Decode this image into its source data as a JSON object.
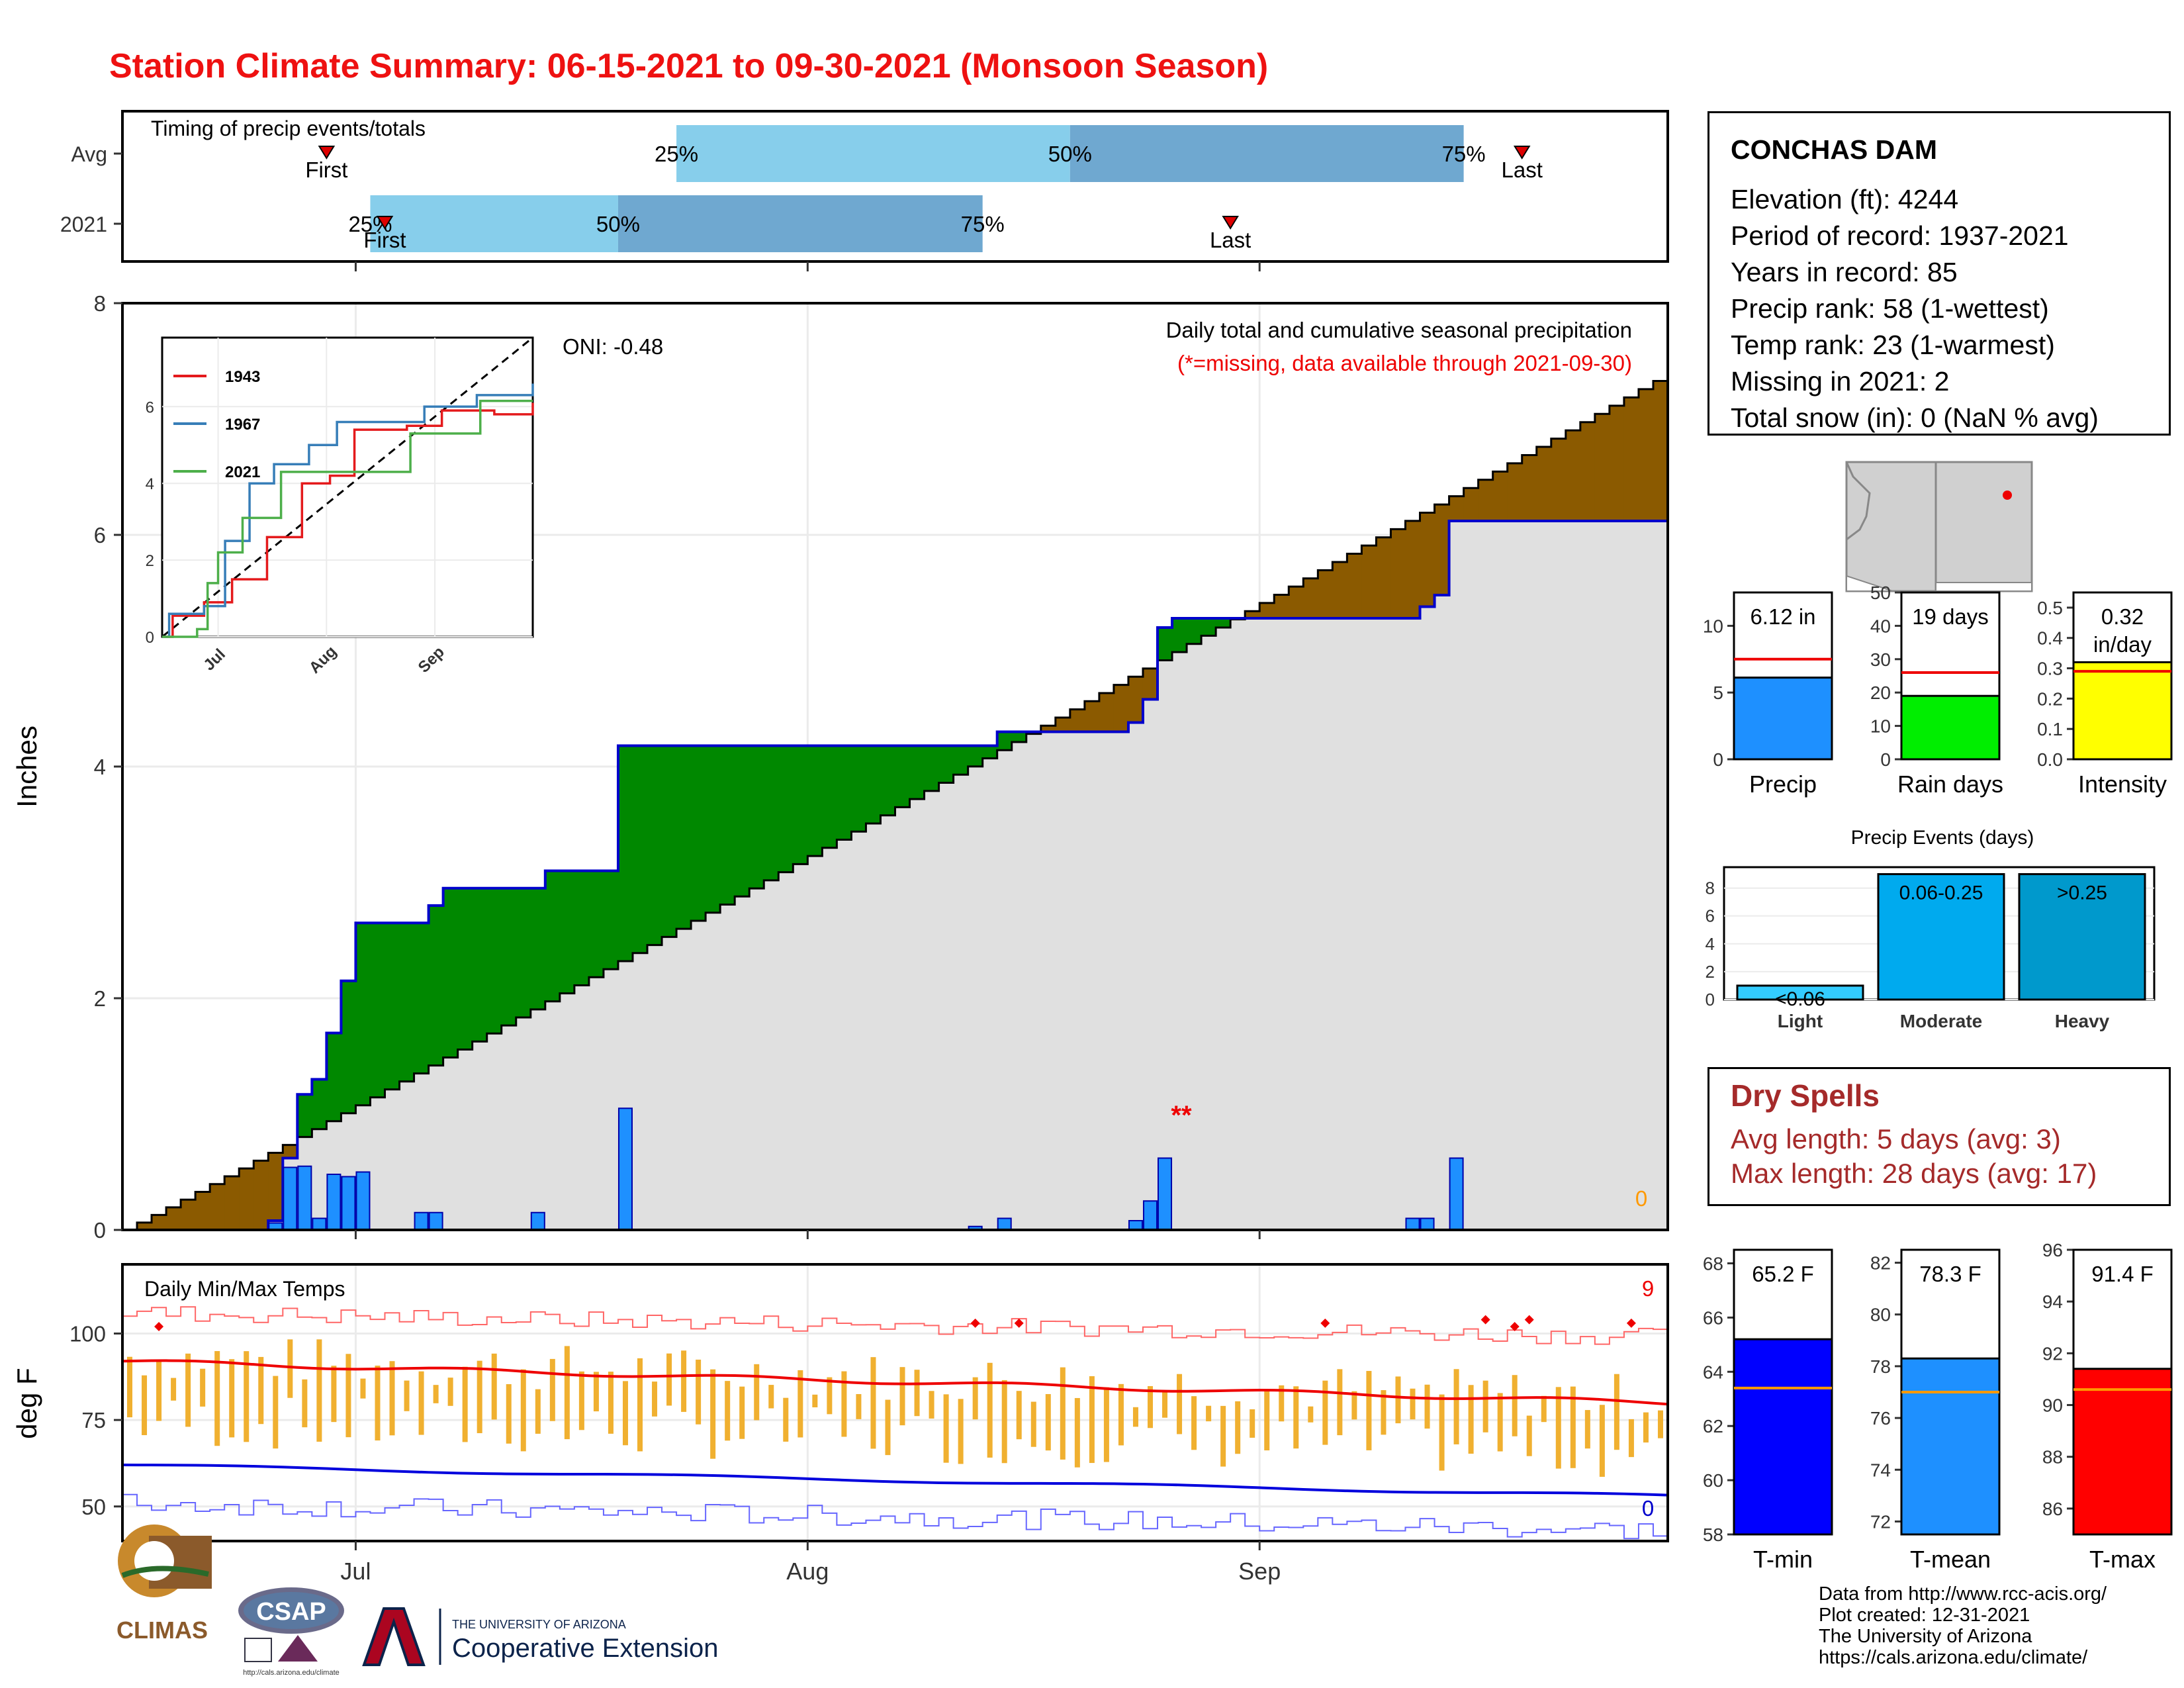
{
  "title": "Station Climate Summary: 06-15-2021 to 09-30-2021 (Monsoon Season)",
  "timing_panel": {
    "label": "Timing of precip events/totals",
    "rows": [
      {
        "name": "Avg",
        "first_doy": 14,
        "last_doy": 96,
        "q25_doy": 38,
        "q50_doy": 65,
        "q75_doy": 92,
        "first_label": "First",
        "last_label": "Last",
        "q25_label": "25%",
        "q50_label": "50%",
        "q75_label": "75%"
      },
      {
        "name": "2021",
        "first_doy": 18,
        "last_doy": 76,
        "q25_doy": 17,
        "q50_doy": 34,
        "q75_doy": 59,
        "first_label": "First",
        "last_label": "Last",
        "q25_label": "25%",
        "q50_label": "50%",
        "q75_label": "75%"
      }
    ],
    "colors": {
      "q1": "#87ceeb",
      "q2": "#6fa8d0",
      "marker": "#dd0000"
    }
  },
  "precip_panel": {
    "ylabel": "Inches",
    "yticks": [
      "0",
      "2",
      "4",
      "6",
      "8"
    ],
    "caption": "Daily total and cumulative seasonal precipitation",
    "caption_note": "(*=missing, data available through 2021-09-30)",
    "oni_label": "ONI: -0.48",
    "missing_marker": "**",
    "zero_note": "0",
    "colors": {
      "normal": "#e0e0e0",
      "surplus": "#008800",
      "deficit": "#8b5a00",
      "daily_bar": "#1e90ff",
      "cum_line": "#0000cc"
    }
  },
  "inset": {
    "series": [
      {
        "name": "1943",
        "color": "#e41a1c"
      },
      {
        "name": "1967",
        "color": "#377eb8"
      },
      {
        "name": "2021",
        "color": "#4daf4a"
      }
    ],
    "yticks": [
      "0",
      "2",
      "4",
      "6"
    ],
    "xticks": [
      "Jul",
      "Aug",
      "Sep"
    ]
  },
  "temp_panel": {
    "title": "Daily Min/Max Temps",
    "ylabel": "deg F",
    "yticks": [
      "50",
      "75",
      "100"
    ],
    "xticks": [
      "Jul",
      "Aug",
      "Sep"
    ],
    "record_high_count": "9",
    "record_low_count": "0",
    "colors": {
      "bar": "#f0b030",
      "avg_max": "#ee0000",
      "avg_min": "#0000dd",
      "record_max": "#ff6666",
      "record_min": "#6666ff"
    }
  },
  "station": {
    "name": "CONCHAS DAM",
    "lines": [
      "Elevation (ft): 4244",
      "Period of record: 1937-2021",
      "Years in record: 85",
      "Precip rank: 58 (1-wettest)",
      "Temp rank: 23 (1-warmest)",
      "Missing in 2021: 2",
      "Total snow (in): 0 (NaN % avg)"
    ]
  },
  "season_bars": [
    {
      "label": "Precip",
      "value_label": "6.12 in",
      "value": 6.12,
      "avg": 7.5,
      "ylim": [
        0,
        12.5
      ],
      "yticks": [
        "0",
        "5",
        "10"
      ],
      "color": "#1e90ff"
    },
    {
      "label": "Rain days",
      "value_label": "19 days",
      "value": 19,
      "avg": 26,
      "ylim": [
        0,
        50
      ],
      "yticks": [
        "0",
        "10",
        "20",
        "30",
        "40",
        "50"
      ],
      "color": "#00ee00"
    },
    {
      "label": "Intensity",
      "value_label": "0.32 in/day",
      "value_label_1": "0.32",
      "value_label_2": "in/day",
      "value": 0.32,
      "avg": 0.29,
      "ylim": [
        0,
        0.55
      ],
      "yticks": [
        "0.0",
        "0.1",
        "0.2",
        "0.3",
        "0.4",
        "0.5"
      ],
      "color": "#ffff00"
    }
  ],
  "precip_events": {
    "title": "Precip Events (days)",
    "yticks": [
      "0",
      "2",
      "4",
      "6",
      "8"
    ],
    "bars": [
      {
        "label": "Light",
        "inner": "<0.06",
        "value": 1,
        "color": "#33ccff"
      },
      {
        "label": "Moderate",
        "inner": "0.06-0.25",
        "value": 9,
        "color": "#00aaee"
      },
      {
        "label": "Heavy",
        "inner": ">0.25",
        "value": 9,
        "color": "#0099cc"
      }
    ]
  },
  "dry_spells": {
    "title": "Dry Spells",
    "avg_length": "Avg length: 5 days (avg: 3)",
    "max_length": "Max length: 28 days (avg: 17)"
  },
  "temp_bars": [
    {
      "label": "T-min",
      "value_label": "65.2 F",
      "value": 65.2,
      "avg": 63.4,
      "ylim": [
        58,
        68.5
      ],
      "yticks": [
        "58",
        "60",
        "62",
        "64",
        "66",
        "68"
      ],
      "color": "#0000ff"
    },
    {
      "label": "T-mean",
      "value_label": "78.3 F",
      "value": 78.3,
      "avg": 77.0,
      "ylim": [
        71.5,
        82.5
      ],
      "yticks": [
        "72",
        "74",
        "76",
        "78",
        "80",
        "82"
      ],
      "color": "#1e90ff"
    },
    {
      "label": "T-max",
      "value_label": "91.4 F",
      "value": 91.4,
      "avg": 90.6,
      "ylim": [
        85,
        96
      ],
      "yticks": [
        "86",
        "88",
        "90",
        "92",
        "94",
        "96"
      ],
      "color": "#ff0000"
    }
  ],
  "credits": [
    "Data from http://www.rcc-acis.org/",
    "Plot created: 12-31-2021",
    "The University of Arizona",
    "https://cals.arizona.edu/climate/"
  ],
  "logos": {
    "climas": "CLIMAS",
    "csap": "CSAP",
    "csap_url": "http://cals.arizona.edu/climate",
    "ua_top": "THE UNIVERSITY OF ARIZONA",
    "ua_bottom": "Cooperative Extension"
  },
  "chart_data": [
    {
      "type": "area",
      "title": "Daily total and cumulative seasonal precipitation",
      "ylabel": "Inches",
      "ylim": [
        0,
        8
      ],
      "x_start": "2021-06-15",
      "x_end": "2021-09-30",
      "cumulative_2021_steps": [
        [
          0,
          0
        ],
        [
          10,
          0.08
        ],
        [
          11,
          0.62
        ],
        [
          12,
          1.17
        ],
        [
          13,
          1.3
        ],
        [
          14,
          1.7
        ],
        [
          15,
          2.15
        ],
        [
          16,
          2.65
        ],
        [
          20,
          2.65
        ],
        [
          21,
          2.8
        ],
        [
          22,
          2.95
        ],
        [
          28,
          2.95
        ],
        [
          29,
          3.1
        ],
        [
          33,
          3.1
        ],
        [
          34,
          4.18
        ],
        [
          58,
          4.18
        ],
        [
          60,
          4.3
        ],
        [
          68,
          4.3
        ],
        [
          69,
          4.38
        ],
        [
          70,
          4.58
        ],
        [
          71,
          5.2
        ],
        [
          72,
          5.28
        ],
        [
          88,
          5.28
        ],
        [
          89,
          5.38
        ],
        [
          90,
          5.48
        ],
        [
          91,
          6.12
        ],
        [
          106,
          6.12
        ]
      ],
      "normal_cumulative_end": 7.4,
      "daily_totals": [
        [
          10,
          0.06
        ],
        [
          11,
          0.54
        ],
        [
          12,
          0.55
        ],
        [
          13,
          0.1
        ],
        [
          14,
          0.48
        ],
        [
          15,
          0.46
        ],
        [
          16,
          0.5
        ],
        [
          20,
          0.15
        ],
        [
          21,
          0.15
        ],
        [
          28,
          0.15
        ],
        [
          34,
          1.05
        ],
        [
          58,
          0.03
        ],
        [
          60,
          0.1
        ],
        [
          69,
          0.08
        ],
        [
          70,
          0.25
        ],
        [
          71,
          0.62
        ],
        [
          88,
          0.1
        ],
        [
          89,
          0.1
        ],
        [
          91,
          0.62
        ]
      ]
    },
    {
      "type": "line",
      "title": "Daily Min/Max Temps",
      "ylabel": "deg F",
      "ylim": [
        40,
        120
      ],
      "avg_max_start": 92,
      "avg_max_end": 80,
      "avg_min_start": 62,
      "avg_min_end": 53
    }
  ]
}
